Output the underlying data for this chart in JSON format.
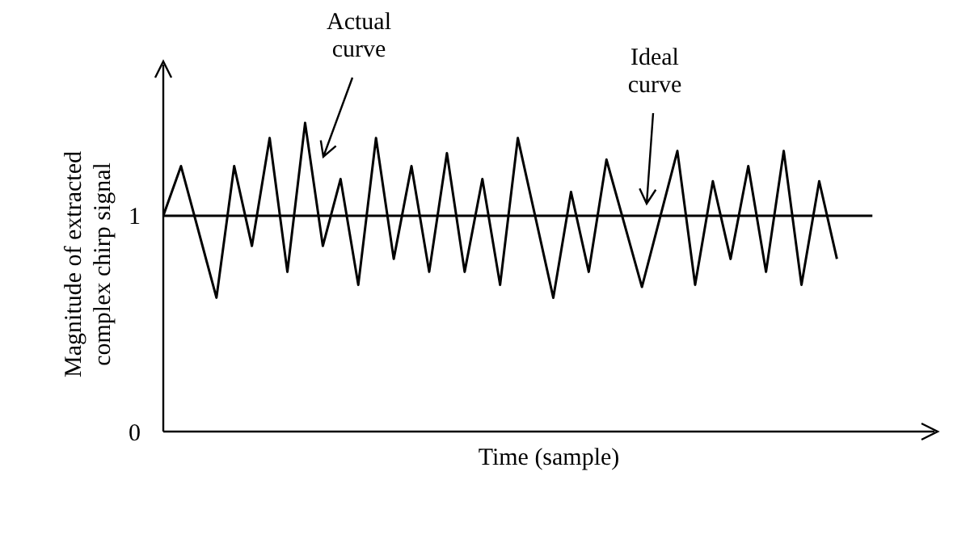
{
  "chart_data": {
    "type": "line",
    "xlabel": "Time (sample)",
    "ylabel": "Magnitude of extracted complex chirp signal",
    "categories": [
      null,
      null,
      null,
      null,
      null,
      null,
      null,
      null,
      null,
      null,
      null,
      null,
      null,
      null,
      null,
      null,
      null,
      null,
      null,
      null,
      null,
      null,
      null,
      null,
      null,
      null,
      null,
      null,
      null,
      null,
      null,
      null,
      null,
      null,
      null,
      null,
      null,
      null,
      null,
      null,
      null,
      null,
      null,
      null
    ],
    "series": [
      {
        "color": "#000000",
        "values": [
          1.0,
          1.23,
          null,
          0.62,
          1.23,
          0.86,
          1.36,
          0.74,
          1.43,
          0.86,
          1.17,
          0.68,
          1.36,
          0.8,
          1.23,
          0.74,
          1.29,
          0.74,
          1.17,
          0.68,
          1.36,
          null,
          0.62,
          1.11,
          0.74,
          1.26,
          null,
          0.67,
          null,
          1.3,
          0.68,
          1.16,
          0.8,
          1.23,
          0.74,
          1.3,
          0.68,
          1.16,
          0.8,
          null,
          null,
          null,
          null,
          null
        ]
      },
      {
        "color": "#000000",
        "values": [
          1,
          1,
          1,
          1,
          1,
          1,
          1,
          1,
          1,
          1,
          1,
          1,
          1,
          1,
          1,
          1,
          1,
          1,
          1,
          1,
          1,
          1,
          1,
          1,
          1,
          1,
          1,
          1,
          1,
          1,
          1,
          1,
          1,
          1,
          1,
          1,
          1,
          1,
          1,
          1,
          1,
          null,
          null,
          null
        ]
      }
    ],
    "ylim": [
      0,
      1.7
    ],
    "yticks": [
      0,
      1
    ],
    "tick_labels": "y",
    "annotations": [
      "Actual curve",
      "Ideal curve"
    ]
  }
}
